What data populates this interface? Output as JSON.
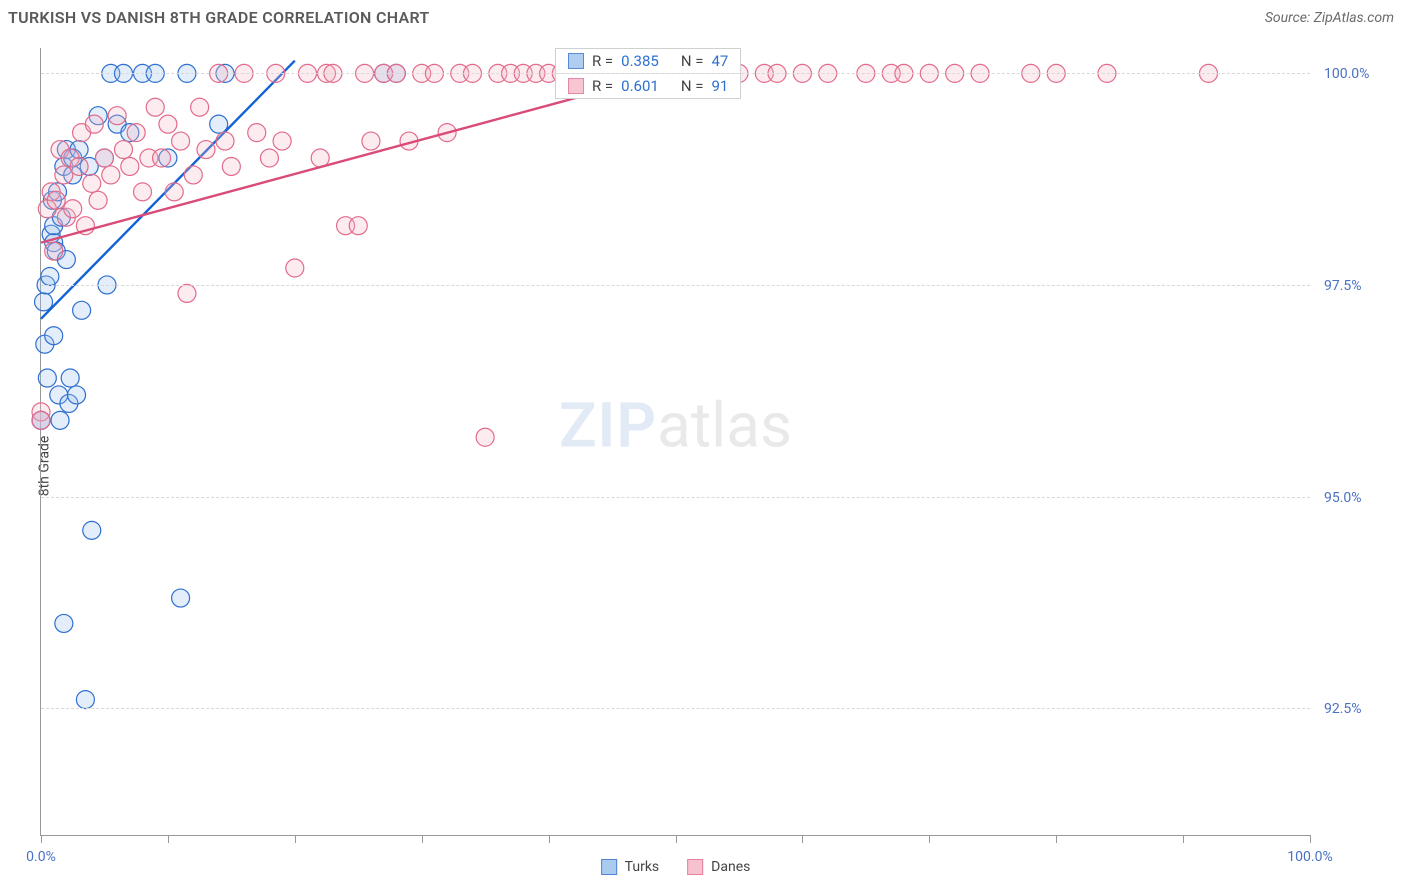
{
  "header": {
    "title": "TURKISH VS DANISH 8TH GRADE CORRELATION CHART",
    "source_prefix": "Source: ",
    "source_name": "ZipAtlas.com"
  },
  "watermark": {
    "part1": "ZIP",
    "part2": "atlas"
  },
  "chart": {
    "type": "scatter",
    "background_color": "#ffffff",
    "grid_color": "#d8d8d8",
    "axis_color": "#999999",
    "tick_label_color": "#4a72c4",
    "tick_fontsize": 14,
    "yaxis_label": "8th Grade",
    "yaxis_label_fontsize": 14,
    "xlim": [
      0,
      100
    ],
    "ylim": [
      91,
      100.3
    ],
    "x_ticks": [
      0,
      10,
      20,
      30,
      40,
      50,
      60,
      70,
      80,
      90,
      100
    ],
    "x_tick_labels": {
      "0": "0.0%",
      "100": "100.0%"
    },
    "y_gridlines": [
      92.5,
      95.0,
      97.5,
      100.0
    ],
    "y_tick_labels": {
      "92.5": "92.5%",
      "95.0": "95.0%",
      "97.5": "97.5%",
      "100.0": "100.0%"
    },
    "marker_radius": 9,
    "marker_stroke_width": 1.2,
    "marker_fill_opacity": 0.28,
    "trend_line_width": 2.4,
    "series": [
      {
        "key": "turks",
        "label": "Turks",
        "fill": "#9cc2ec",
        "stroke": "#2f6fd0",
        "trend_color": "#1062d6",
        "R": "0.385",
        "N": "47",
        "trend": {
          "x1": 0,
          "y1": 97.1,
          "x2": 20,
          "y2": 100.15
        },
        "points": [
          [
            0.0,
            95.9
          ],
          [
            0.0,
            95.9
          ],
          [
            0.2,
            97.3
          ],
          [
            0.3,
            96.8
          ],
          [
            0.4,
            97.5
          ],
          [
            0.5,
            96.4
          ],
          [
            0.7,
            97.6
          ],
          [
            0.8,
            98.1
          ],
          [
            0.9,
            98.5
          ],
          [
            1.0,
            96.9
          ],
          [
            1.0,
            98.0
          ],
          [
            1.0,
            98.2
          ],
          [
            1.2,
            97.9
          ],
          [
            1.3,
            98.6
          ],
          [
            1.4,
            96.2
          ],
          [
            1.5,
            95.9
          ],
          [
            1.6,
            98.3
          ],
          [
            1.8,
            98.9
          ],
          [
            1.8,
            93.5
          ],
          [
            2.0,
            99.1
          ],
          [
            2.0,
            97.8
          ],
          [
            2.2,
            96.1
          ],
          [
            2.3,
            96.4
          ],
          [
            2.5,
            98.8
          ],
          [
            2.5,
            99.0
          ],
          [
            2.8,
            96.2
          ],
          [
            3.0,
            99.1
          ],
          [
            3.2,
            97.2
          ],
          [
            3.5,
            92.6
          ],
          [
            3.8,
            98.9
          ],
          [
            4.0,
            94.6
          ],
          [
            4.5,
            99.5
          ],
          [
            5.0,
            99.0
          ],
          [
            5.2,
            97.5
          ],
          [
            5.5,
            100.0
          ],
          [
            6.0,
            99.4
          ],
          [
            6.5,
            100.0
          ],
          [
            7.0,
            99.3
          ],
          [
            8.0,
            100.0
          ],
          [
            9.0,
            100.0
          ],
          [
            10.0,
            99.0
          ],
          [
            11.0,
            93.8
          ],
          [
            11.5,
            100.0
          ],
          [
            14.0,
            99.4
          ],
          [
            14.5,
            100.0
          ],
          [
            27.0,
            100.0
          ],
          [
            28.0,
            100.0
          ]
        ]
      },
      {
        "key": "danes",
        "label": "Danes",
        "fill": "#f6b8c7",
        "stroke": "#e26b8b",
        "trend_color": "#d94c77",
        "R": "0.601",
        "N": "91",
        "trend": {
          "x1": 0,
          "y1": 98.0,
          "x2": 53,
          "y2": 100.15
        },
        "points": [
          [
            0.0,
            96.0
          ],
          [
            0.0,
            95.9
          ],
          [
            0.5,
            98.4
          ],
          [
            0.8,
            98.6
          ],
          [
            1.0,
            97.9
          ],
          [
            1.2,
            98.5
          ],
          [
            1.5,
            99.1
          ],
          [
            1.8,
            98.8
          ],
          [
            2.0,
            98.3
          ],
          [
            2.3,
            99.0
          ],
          [
            2.5,
            98.4
          ],
          [
            3.0,
            98.9
          ],
          [
            3.2,
            99.3
          ],
          [
            3.5,
            98.2
          ],
          [
            4.0,
            98.7
          ],
          [
            4.2,
            99.4
          ],
          [
            4.5,
            98.5
          ],
          [
            5.0,
            99.0
          ],
          [
            5.5,
            98.8
          ],
          [
            6.0,
            99.5
          ],
          [
            6.5,
            99.1
          ],
          [
            7.0,
            98.9
          ],
          [
            7.5,
            99.3
          ],
          [
            8.0,
            98.6
          ],
          [
            8.5,
            99.0
          ],
          [
            9.0,
            99.6
          ],
          [
            9.5,
            99.0
          ],
          [
            10.0,
            99.4
          ],
          [
            10.5,
            98.6
          ],
          [
            11.0,
            99.2
          ],
          [
            11.5,
            97.4
          ],
          [
            12.0,
            98.8
          ],
          [
            12.5,
            99.6
          ],
          [
            13.0,
            99.1
          ],
          [
            14.0,
            100.0
          ],
          [
            14.5,
            99.2
          ],
          [
            15.0,
            98.9
          ],
          [
            16.0,
            100.0
          ],
          [
            17.0,
            99.3
          ],
          [
            18.0,
            99.0
          ],
          [
            18.5,
            100.0
          ],
          [
            19.0,
            99.2
          ],
          [
            20.0,
            97.7
          ],
          [
            21.0,
            100.0
          ],
          [
            22.0,
            99.0
          ],
          [
            22.5,
            100.0
          ],
          [
            23.0,
            100.0
          ],
          [
            24.0,
            98.2
          ],
          [
            25.0,
            98.2
          ],
          [
            25.5,
            100.0
          ],
          [
            26.0,
            99.2
          ],
          [
            27.0,
            100.0
          ],
          [
            28.0,
            100.0
          ],
          [
            29.0,
            99.2
          ],
          [
            30.0,
            100.0
          ],
          [
            31.0,
            100.0
          ],
          [
            32.0,
            99.3
          ],
          [
            33.0,
            100.0
          ],
          [
            34.0,
            100.0
          ],
          [
            35.0,
            95.7
          ],
          [
            36.0,
            100.0
          ],
          [
            37.0,
            100.0
          ],
          [
            38.0,
            100.0
          ],
          [
            39.0,
            100.0
          ],
          [
            40.0,
            100.0
          ],
          [
            41.0,
            100.0
          ],
          [
            42.0,
            100.0
          ],
          [
            43.0,
            100.0
          ],
          [
            44.0,
            100.0
          ],
          [
            45.0,
            100.0
          ],
          [
            46.0,
            100.0
          ],
          [
            48.0,
            100.0
          ],
          [
            50.0,
            100.0
          ],
          [
            51.0,
            100.0
          ],
          [
            52.0,
            100.0
          ],
          [
            53.0,
            100.0
          ],
          [
            55.0,
            100.0
          ],
          [
            57.0,
            100.0
          ],
          [
            58.0,
            100.0
          ],
          [
            60.0,
            100.0
          ],
          [
            62.0,
            100.0
          ],
          [
            65.0,
            100.0
          ],
          [
            67.0,
            100.0
          ],
          [
            68.0,
            100.0
          ],
          [
            70.0,
            100.0
          ],
          [
            72.0,
            100.0
          ],
          [
            74.0,
            100.0
          ],
          [
            78.0,
            100.0
          ],
          [
            80.0,
            100.0
          ],
          [
            84.0,
            100.0
          ],
          [
            92.0,
            100.0
          ]
        ]
      }
    ],
    "stats_box": {
      "left_pct": 40.5,
      "top_pct": 0,
      "R_label": "R =",
      "N_label": "N ="
    },
    "bottom_legend": {
      "items": [
        "turks",
        "danes"
      ]
    }
  }
}
